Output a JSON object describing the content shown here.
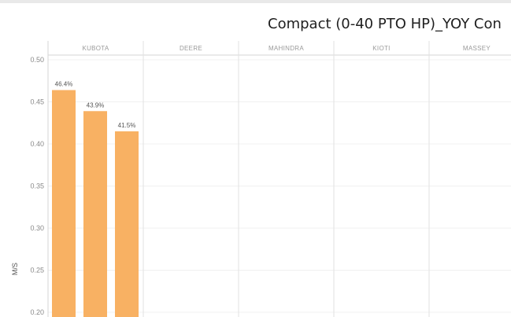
{
  "chart_data": {
    "type": "bar",
    "title": "Compact (0-40 PTO HP)_YOY Con",
    "ylabel": "M/S",
    "ylim": [
      0.2,
      0.5
    ],
    "yticks": [
      "0.50",
      "0.45",
      "0.40",
      "0.35",
      "0.30",
      "0.25",
      "0.20"
    ],
    "yticks_values": [
      0.5,
      0.45,
      0.4,
      0.35,
      0.3,
      0.25,
      0.2
    ],
    "categories": [
      "KUBOTA",
      "DEERE",
      "MAHINDRA",
      "KIOTI",
      "MASSEY"
    ],
    "grid": true,
    "bar_color": "#f8b163",
    "bars": [
      {
        "category": "KUBOTA",
        "values": [
          0.464,
          0.439,
          0.415
        ],
        "labels": [
          "46.4%",
          "43.9%",
          "41.5%"
        ]
      },
      {
        "category": "DEERE",
        "values": [],
        "labels": []
      },
      {
        "category": "MAHINDRA",
        "values": [],
        "labels": []
      },
      {
        "category": "KIOTI",
        "values": [],
        "labels": []
      },
      {
        "category": "MASSEY",
        "values": [],
        "labels": []
      }
    ]
  }
}
